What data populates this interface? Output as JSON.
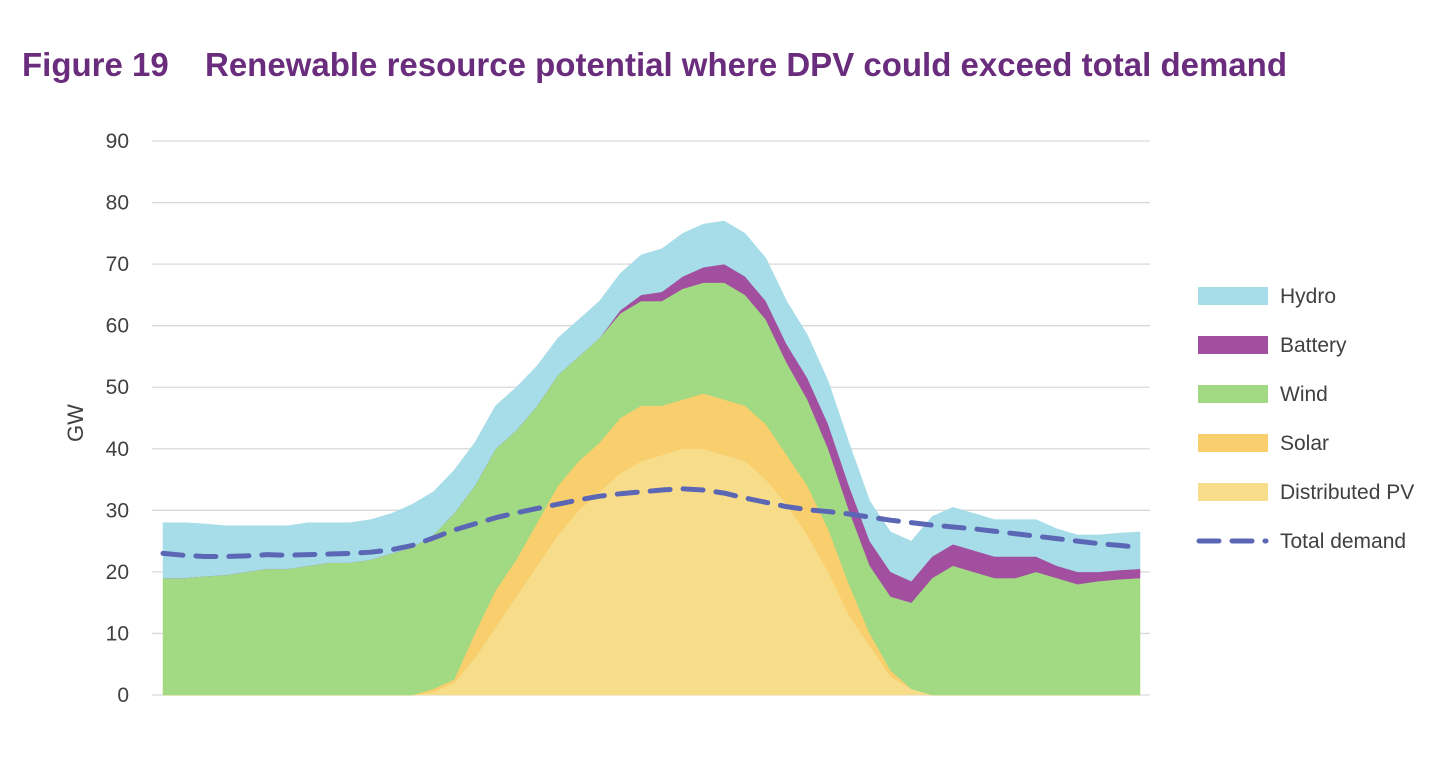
{
  "figure": {
    "number": "Figure 19",
    "title": "Renewable resource potential where DPV could exceed total demand"
  },
  "chart_data": {
    "type": "area",
    "stacked": true,
    "ylabel": "GW",
    "xlabel": "",
    "ylim": [
      0,
      90
    ],
    "yticks": [
      0,
      10,
      20,
      30,
      40,
      50,
      60,
      70,
      80,
      90
    ],
    "grid": true,
    "legend_position": "right",
    "x": [
      0,
      0.5,
      1,
      1.5,
      2,
      2.5,
      3,
      3.5,
      4,
      4.5,
      5,
      5.5,
      6,
      6.5,
      7,
      7.5,
      8,
      8.5,
      9,
      9.5,
      10,
      10.5,
      11,
      11.5,
      12,
      12.5,
      13,
      13.5,
      14,
      14.5,
      15,
      15.5,
      16,
      16.5,
      17,
      17.5,
      18,
      18.5,
      19,
      19.5,
      20,
      20.5,
      21,
      21.5,
      22,
      22.5,
      23,
      23.5
    ],
    "series": [
      {
        "name": "Distributed PV",
        "color": "#f7dc8a",
        "values": [
          0,
          0,
          0,
          0,
          0,
          0,
          0,
          0,
          0,
          0,
          0,
          0,
          0,
          0.5,
          2,
          6,
          11,
          16,
          21,
          26,
          30,
          33,
          36,
          38,
          39,
          40,
          40,
          39,
          38,
          35,
          31,
          26,
          20,
          13,
          8,
          3,
          1,
          0,
          0,
          0,
          0,
          0,
          0,
          0,
          0,
          0,
          0,
          0
        ]
      },
      {
        "name": "Solar",
        "color": "#f9ce6c",
        "values": [
          0,
          0,
          0,
          0,
          0,
          0,
          0,
          0,
          0,
          0,
          0,
          0,
          0,
          0.5,
          0.5,
          4,
          6,
          6,
          7,
          8,
          8,
          8,
          9,
          9,
          8,
          8,
          9,
          9,
          9,
          9,
          8,
          8,
          7,
          5,
          2,
          1,
          0,
          0,
          0,
          0,
          0,
          0,
          0,
          0,
          0,
          0,
          0,
          0
        ]
      },
      {
        "name": "Wind",
        "color": "#a2d983",
        "values": [
          19,
          19,
          19.3,
          19.5,
          20,
          20.5,
          20.5,
          21,
          21.5,
          21.5,
          22,
          23,
          24,
          25,
          27,
          24,
          23,
          21,
          19,
          18,
          17,
          17,
          17,
          17,
          17,
          18,
          18,
          19,
          18,
          17,
          15,
          14,
          13,
          12,
          11,
          12,
          14,
          19,
          21,
          20,
          19,
          19,
          20,
          19,
          18,
          18.5,
          18.8,
          19
        ]
      },
      {
        "name": "Battery",
        "color": "#a24fa0",
        "values": [
          0,
          0,
          0,
          0,
          0,
          0,
          0,
          0,
          0,
          0,
          0,
          0,
          0,
          0,
          0,
          0,
          0,
          0,
          0,
          0,
          0,
          0,
          0.5,
          1,
          1.5,
          2,
          2.5,
          3,
          3,
          3,
          3,
          3.5,
          4,
          4,
          4,
          4,
          3.5,
          3.5,
          3.5,
          3.5,
          3.5,
          3.5,
          2.5,
          2,
          2,
          1.5,
          1.5,
          1.5
        ]
      },
      {
        "name": "Hydro",
        "color": "#a6dde8",
        "values": [
          9,
          9,
          8.5,
          8,
          7.5,
          7,
          7,
          7,
          6.5,
          6.5,
          6.5,
          6.5,
          7,
          7,
          7,
          7,
          7,
          7,
          6.5,
          6,
          6,
          6,
          6,
          6.5,
          7,
          7,
          7,
          7,
          7,
          7,
          7,
          7,
          7,
          7,
          6.5,
          6.5,
          6.5,
          6.5,
          6,
          6,
          6,
          6,
          6,
          6,
          6,
          6,
          6,
          6
        ]
      }
    ],
    "line_series": {
      "name": "Total demand",
      "color": "#5b67b5",
      "dashed": true,
      "values": [
        23,
        22.7,
        22.5,
        22.5,
        22.6,
        22.8,
        22.7,
        22.8,
        22.9,
        23,
        23.2,
        23.6,
        24.3,
        25.5,
        26.8,
        27.8,
        28.8,
        29.6,
        30.3,
        31,
        31.7,
        32.3,
        32.7,
        33,
        33.3,
        33.5,
        33.3,
        32.8,
        32,
        31.3,
        30.6,
        30.1,
        29.8,
        29.4,
        28.9,
        28.4,
        28,
        27.6,
        27.3,
        27,
        26.6,
        26.2,
        25.8,
        25.4,
        25,
        24.6,
        24.3,
        24
      ]
    },
    "legend_order": [
      "Hydro",
      "Battery",
      "Wind",
      "Solar",
      "Distributed PV",
      "Total demand"
    ]
  }
}
